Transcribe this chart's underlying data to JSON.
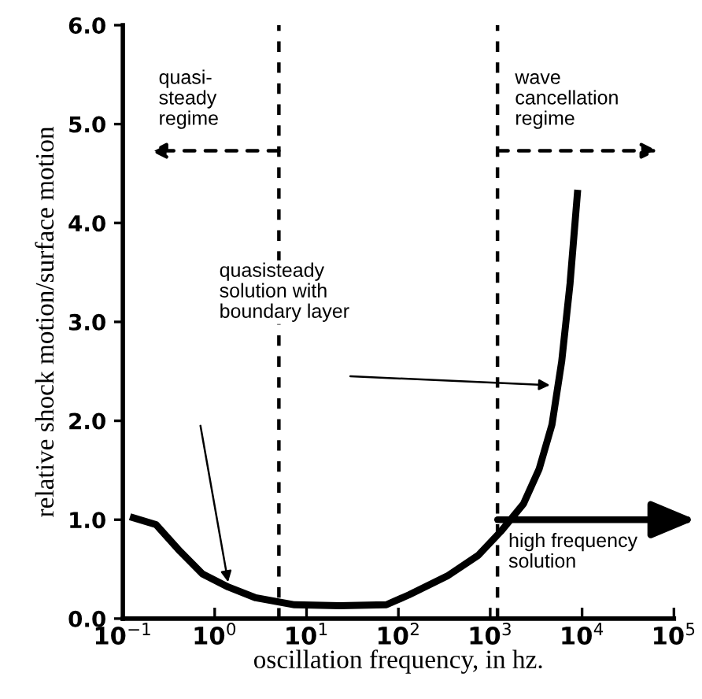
{
  "chart_data": {
    "type": "line",
    "xlabel": "oscillation frequency, in hz.",
    "ylabel": "relative shock motion/surface motion",
    "log": "x",
    "x": [
      0.13,
      0.23,
      0.42,
      0.74,
      1.4,
      2.8,
      7.4,
      23,
      74,
      130,
      340,
      740,
      1300,
      2300,
      3400,
      4700,
      6000,
      7400,
      8900
    ],
    "series": [
      {
        "color": "#000000",
        "values": [
          1.02,
          0.95,
          0.68,
          0.45,
          0.32,
          0.21,
          0.14,
          0.13,
          0.14,
          0.24,
          0.43,
          0.64,
          0.88,
          1.16,
          1.51,
          1.96,
          2.6,
          3.39,
          4.3
        ]
      }
    ],
    "xlim": [
      0.1,
      100000
    ],
    "ylim": [
      0,
      6
    ],
    "xticks": [
      {
        "value": 0.1,
        "label": "10$^{−1}$"
      },
      {
        "value": 1,
        "label": "10$^{0}$"
      },
      {
        "value": 10,
        "label": "10$^{1}$"
      },
      {
        "value": 100,
        "label": "10$^{2}$"
      },
      {
        "value": 1000,
        "label": "10$^{3}$"
      },
      {
        "value": 10000,
        "label": "10$^{4}$"
      },
      {
        "value": 100000,
        "label": "10$^{5}$"
      }
    ],
    "yticks": [
      {
        "value": 0,
        "label": "0.0"
      },
      {
        "value": 1,
        "label": "1.0"
      },
      {
        "value": 2,
        "label": "2.0"
      },
      {
        "value": 3,
        "label": "3.0"
      },
      {
        "value": 4,
        "label": "4.0"
      },
      {
        "value": 5,
        "label": "5.0"
      },
      {
        "value": 6,
        "label": "6.0"
      }
    ],
    "ref_lines": [
      {
        "axis": "x",
        "value": 5,
        "line_style": "dashed",
        "color": "#000000"
      },
      {
        "axis": "x",
        "value": 1200,
        "line_style": "dashed",
        "color": "#000000"
      }
    ],
    "annotations": [
      {
        "text": "quasi-\nsteady\nregime",
        "x": 5,
        "y": 4.73
      },
      {
        "text": "wave\ncancellation\nregime",
        "x": 1200,
        "y": 4.73
      },
      "quasisteady\nsolution with\nboundary layer",
      "high frequency\nsolution"
    ],
    "grid": false,
    "legend": false,
    "marker": "none",
    "line_style": "solid"
  }
}
